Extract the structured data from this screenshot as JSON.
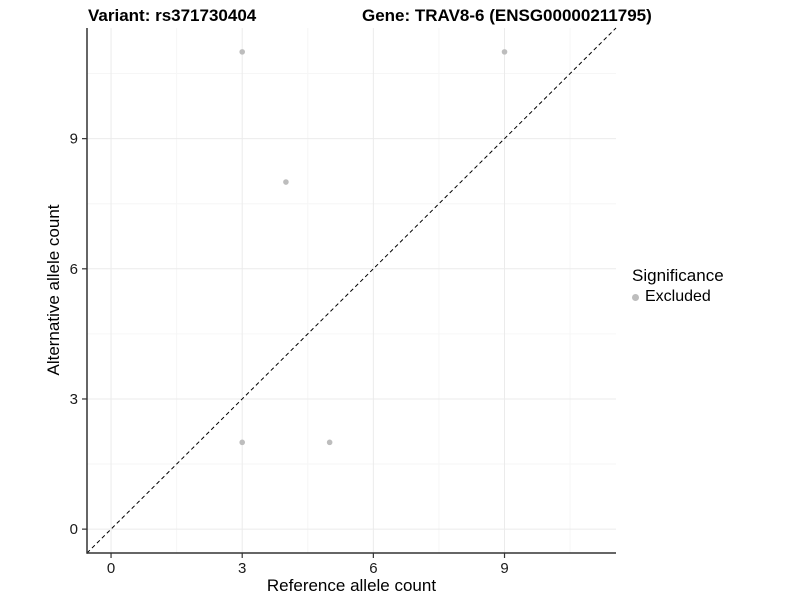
{
  "header": {
    "variant_title": "Variant: rs371730404",
    "gene_title": "Gene: TRAV8-6 (ENSG00000211795)"
  },
  "chart_data": {
    "type": "scatter",
    "xlabel": "Reference allele count",
    "ylabel": "Alternative allele count",
    "xlim": [
      -0.55,
      11.55
    ],
    "ylim": [
      -0.55,
      11.55
    ],
    "xticks": [
      0,
      3,
      6,
      9
    ],
    "yticks": [
      0,
      3,
      6,
      9
    ],
    "x_minor_ticks": [
      1.5,
      4.5,
      7.5,
      10.5
    ],
    "y_minor_ticks": [
      1.5,
      4.5,
      7.5,
      10.5
    ],
    "grid": true,
    "series": [
      {
        "name": "Excluded",
        "color": "#bdbdbd",
        "point_radius": 2.8,
        "points": [
          {
            "x": 3,
            "y": 11
          },
          {
            "x": 9,
            "y": 11
          },
          {
            "x": 4,
            "y": 8
          },
          {
            "x": 3,
            "y": 2
          },
          {
            "x": 5,
            "y": 2
          }
        ]
      }
    ],
    "identity_line": {
      "slope": 1,
      "intercept": 0,
      "style": "dashed",
      "color": "#000000"
    },
    "legend": {
      "title": "Significance",
      "position": "right",
      "items": [
        {
          "label": "Excluded",
          "color": "#bdbdbd"
        }
      ]
    },
    "colors": {
      "axis_line": "#333333",
      "tick_label": "#1a1a1a",
      "grid_major": "#ebebeb",
      "grid_minor": "#f6f6f6"
    }
  }
}
